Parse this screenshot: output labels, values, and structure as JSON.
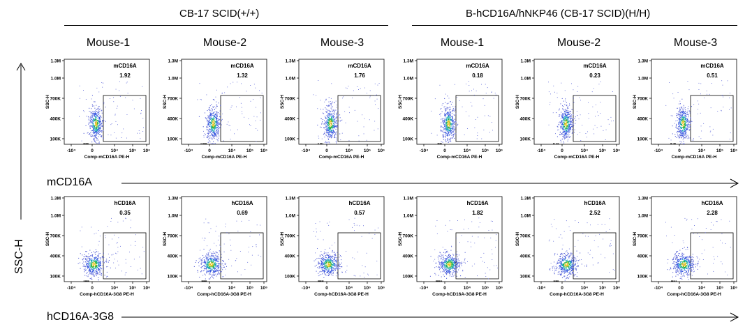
{
  "groups": [
    {
      "title": "CB-17 SCID(+/+)"
    },
    {
      "title": "B-hCD16A/hNKP46 (CB-17 SCID)(H/H)"
    }
  ],
  "mice": [
    "Mouse-1",
    "Mouse-2",
    "Mouse-3",
    "Mouse-1",
    "Mouse-2",
    "Mouse-3"
  ],
  "y_axis_title": "SSC-H",
  "row_axis_labels": [
    "mCD16A",
    "hCD16A-3G8"
  ],
  "chart_data": {
    "type": "scatter",
    "ylabel": "SSC-H",
    "y_ticks": [
      "1.3M",
      "1.0M",
      "700K",
      "400K",
      "100K"
    ],
    "x_ticks": [
      "-10⁴",
      "0",
      "10⁴",
      "10⁵",
      "10⁶"
    ],
    "rows": [
      {
        "gate_label": "mCD16A",
        "xlabel": "Comp-mCD16A PE-H",
        "percentages": [
          "1.92",
          "1.32",
          "1.76",
          "0.18",
          "0.23",
          "0.51"
        ]
      },
      {
        "gate_label": "hCD16A",
        "xlabel": "Comp-hCD16A-3G8 PE-H",
        "percentages": [
          "0.35",
          "0.69",
          "0.57",
          "1.82",
          "2.52",
          "2.28"
        ]
      }
    ]
  }
}
